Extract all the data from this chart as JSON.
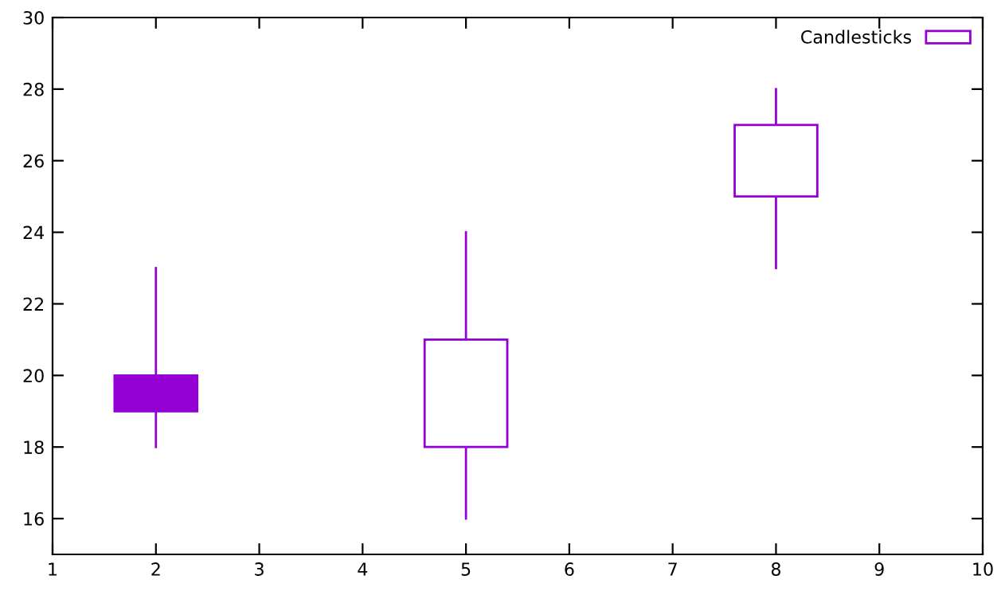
{
  "chart_data": {
    "type": "candlestick",
    "x": [
      2,
      5,
      8
    ],
    "series": [
      {
        "name": "Candlesticks",
        "color": "#9400d3",
        "ohlc": [
          [
            20,
            23,
            18,
            19
          ],
          [
            18,
            24,
            16,
            21
          ],
          [
            25,
            28,
            23,
            27
          ]
        ]
      }
    ],
    "xlim": [
      1,
      10
    ],
    "ylim": [
      15,
      30
    ],
    "xticks": [
      1,
      2,
      3,
      4,
      5,
      6,
      7,
      8,
      9,
      10
    ],
    "yticks": [
      16,
      18,
      20,
      22,
      24,
      26,
      28,
      30
    ],
    "legend": "top right",
    "grid": false
  }
}
